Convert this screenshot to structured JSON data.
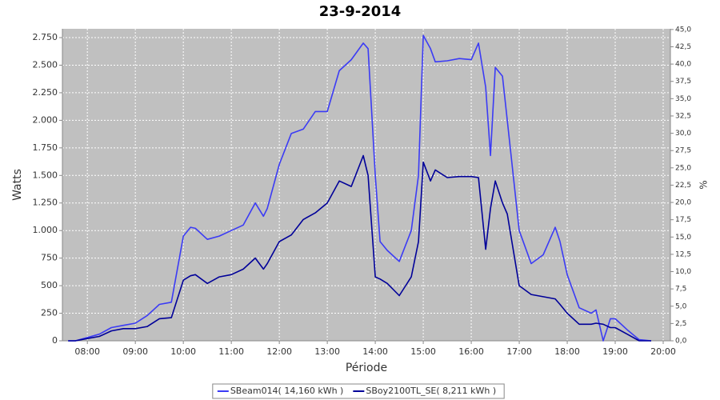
{
  "chart_data": {
    "type": "line",
    "title": "23-9-2014",
    "x_label": "Période",
    "y_label": "Watts",
    "y2_label": "%",
    "x": [
      7.6,
      7.75,
      8.0,
      8.25,
      8.5,
      8.75,
      9.0,
      9.25,
      9.5,
      9.75,
      10.0,
      10.15,
      10.25,
      10.5,
      10.75,
      11.0,
      11.25,
      11.5,
      11.67,
      11.75,
      12.0,
      12.25,
      12.5,
      12.75,
      13.0,
      13.25,
      13.5,
      13.75,
      13.85,
      14.0,
      14.1,
      14.25,
      14.5,
      14.75,
      14.9,
      15.0,
      15.15,
      15.25,
      15.5,
      15.75,
      16.0,
      16.15,
      16.3,
      16.4,
      16.5,
      16.65,
      16.75,
      17.0,
      17.25,
      17.5,
      17.75,
      17.85,
      18.0,
      18.25,
      18.5,
      18.6,
      18.75,
      18.9,
      19.0,
      19.25,
      19.5,
      19.75
    ],
    "series": [
      {
        "name": "SBeam014( 14,160 kWh )",
        "color": "#3b3bf5",
        "values": [
          0,
          0,
          30,
          60,
          120,
          140,
          160,
          230,
          330,
          350,
          950,
          1030,
          1020,
          920,
          950,
          1000,
          1050,
          1250,
          1130,
          1200,
          1600,
          1880,
          1920,
          2080,
          2080,
          2450,
          2550,
          2700,
          2650,
          1500,
          900,
          820,
          720,
          1000,
          1500,
          2770,
          2650,
          2530,
          2540,
          2560,
          2550,
          2700,
          2300,
          1680,
          2480,
          2400,
          2000,
          1000,
          700,
          780,
          1030,
          900,
          600,
          300,
          250,
          280,
          0,
          200,
          200,
          100,
          10,
          0
        ]
      },
      {
        "name": "SBoy2100TL_SE( 8,211 kWh )",
        "color": "#000099",
        "values": [
          0,
          0,
          20,
          40,
          90,
          110,
          110,
          130,
          200,
          210,
          550,
          590,
          600,
          520,
          580,
          600,
          650,
          750,
          650,
          700,
          900,
          960,
          1100,
          1160,
          1250,
          1450,
          1400,
          1680,
          1500,
          580,
          560,
          520,
          410,
          580,
          900,
          1620,
          1450,
          1550,
          1480,
          1490,
          1490,
          1480,
          830,
          1200,
          1450,
          1250,
          1150,
          500,
          420,
          400,
          380,
          330,
          250,
          150,
          150,
          160,
          150,
          120,
          120,
          60,
          0,
          0
        ]
      }
    ],
    "xlim": [
      7.48,
      20.15
    ],
    "xticks": [
      {
        "value": 8,
        "label": "08:00"
      },
      {
        "value": 9,
        "label": "09:00"
      },
      {
        "value": 10,
        "label": "10:00"
      },
      {
        "value": 11,
        "label": "11:00"
      },
      {
        "value": 12,
        "label": "12:00"
      },
      {
        "value": 13,
        "label": "13:00"
      },
      {
        "value": 14,
        "label": "14:00"
      },
      {
        "value": 15,
        "label": "15:00"
      },
      {
        "value": 16,
        "label": "16:00"
      },
      {
        "value": 17,
        "label": "17:00"
      },
      {
        "value": 18,
        "label": "18:00"
      },
      {
        "value": 19,
        "label": "19:00"
      },
      {
        "value": 20,
        "label": "20:00"
      }
    ],
    "ylim": [
      0,
      2830
    ],
    "yticks": [
      0,
      250,
      500,
      750,
      {
        "value": 1000,
        "label": "1.000"
      },
      {
        "value": 1250,
        "label": "1.250"
      },
      {
        "value": 1500,
        "label": "1.500"
      },
      {
        "value": 1750,
        "label": "1.750"
      },
      {
        "value": 2000,
        "label": "2.000"
      },
      {
        "value": 2250,
        "label": "2.250"
      },
      {
        "value": 2500,
        "label": "2.500"
      },
      {
        "value": 2750,
        "label": "2.750"
      }
    ],
    "y2lim": [
      0,
      45.1
    ],
    "y2ticks": [
      {
        "value": 0,
        "label": "0,0"
      },
      {
        "value": 2.5,
        "label": "2,5"
      },
      {
        "value": 5,
        "label": "5,0"
      },
      {
        "value": 7.5,
        "label": "7,5"
      },
      {
        "value": 10,
        "label": "10,0"
      },
      {
        "value": 12.5,
        "label": "12,5"
      },
      {
        "value": 15,
        "label": "15,0"
      },
      {
        "value": 17.5,
        "label": "17,5"
      },
      {
        "value": 20,
        "label": "20,0"
      },
      {
        "value": 22.5,
        "label": "22,5"
      },
      {
        "value": 25,
        "label": "25,0"
      },
      {
        "value": 27.5,
        "label": "27,5"
      },
      {
        "value": 30,
        "label": "30,0"
      },
      {
        "value": 32.5,
        "label": "32,5"
      },
      {
        "value": 35,
        "label": "35,0"
      },
      {
        "value": 37.5,
        "label": "37,5"
      },
      {
        "value": 40,
        "label": "40,0"
      },
      {
        "value": 42.5,
        "label": "42,5"
      },
      {
        "value": 45,
        "label": "45,0"
      }
    ],
    "grid": true,
    "legend": "bottom"
  }
}
